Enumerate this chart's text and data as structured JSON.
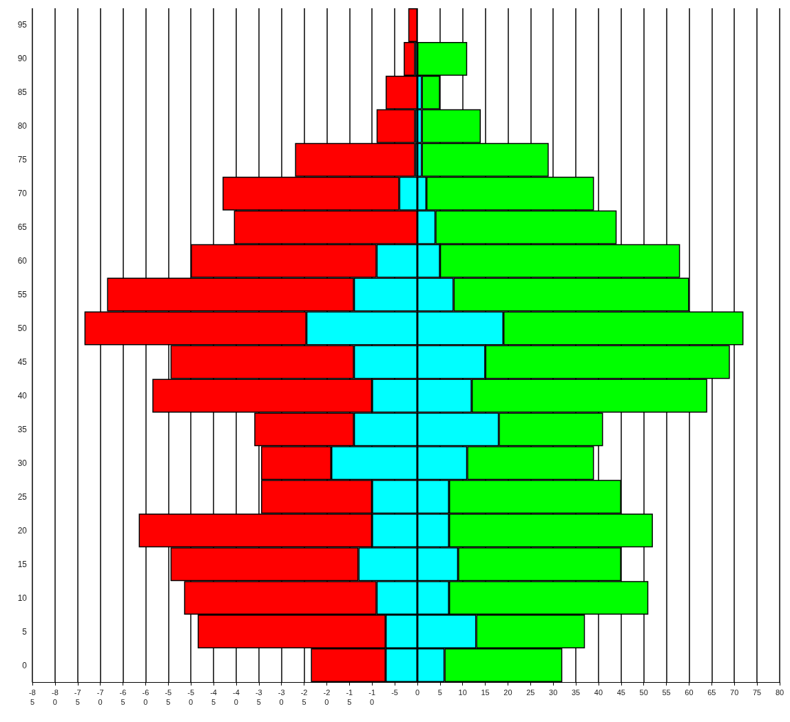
{
  "chart_data": {
    "type": "bar",
    "orientation": "horizontal",
    "stacked": true,
    "grid": "x",
    "categories": [
      "95",
      "90",
      "85",
      "80",
      "75",
      "70",
      "65",
      "60",
      "55",
      "50",
      "45",
      "40",
      "35",
      "30",
      "25",
      "20",
      "15",
      "10",
      "5",
      "0"
    ],
    "series": [
      {
        "color": "#00ffff",
        "values": [
          null,
          -0.5,
          null,
          -0.5,
          -0.5,
          -4,
          null,
          -9,
          -14,
          -24.5,
          -14,
          -10,
          -14,
          -19,
          -10,
          -10,
          -13,
          -9,
          -7,
          -7
        ]
      },
      {
        "color": "#ff0000",
        "values": [
          -2,
          -2.5,
          -7,
          -8.5,
          -26.5,
          -39,
          -40.5,
          -41,
          -54.5,
          -49,
          -40.5,
          -48.5,
          -22,
          -15.5,
          -24.5,
          -51.5,
          -41.5,
          -42.5,
          -41.5,
          -16.5
        ]
      },
      {
        "color": "#00ffff",
        "values": [
          null,
          null,
          1,
          1,
          1,
          2,
          4,
          5,
          8,
          19,
          15,
          12,
          18,
          11,
          7,
          7,
          9,
          7,
          13,
          6
        ]
      },
      {
        "color": "#00ff00",
        "values": [
          null,
          11,
          4,
          13,
          28,
          37,
          40,
          53,
          52,
          53,
          54,
          52,
          23,
          28,
          38,
          45,
          36,
          44,
          24,
          26
        ]
      }
    ],
    "xlim": [
      -85,
      80
    ],
    "xticks": [
      -85,
      -80,
      -75,
      -70,
      -65,
      -60,
      -55,
      -50,
      -45,
      -40,
      -35,
      -30,
      -25,
      -20,
      -15,
      -10,
      -5,
      0,
      5,
      10,
      15,
      20,
      25,
      30,
      35,
      40,
      45,
      50,
      55,
      60,
      65,
      70,
      75,
      80
    ]
  }
}
